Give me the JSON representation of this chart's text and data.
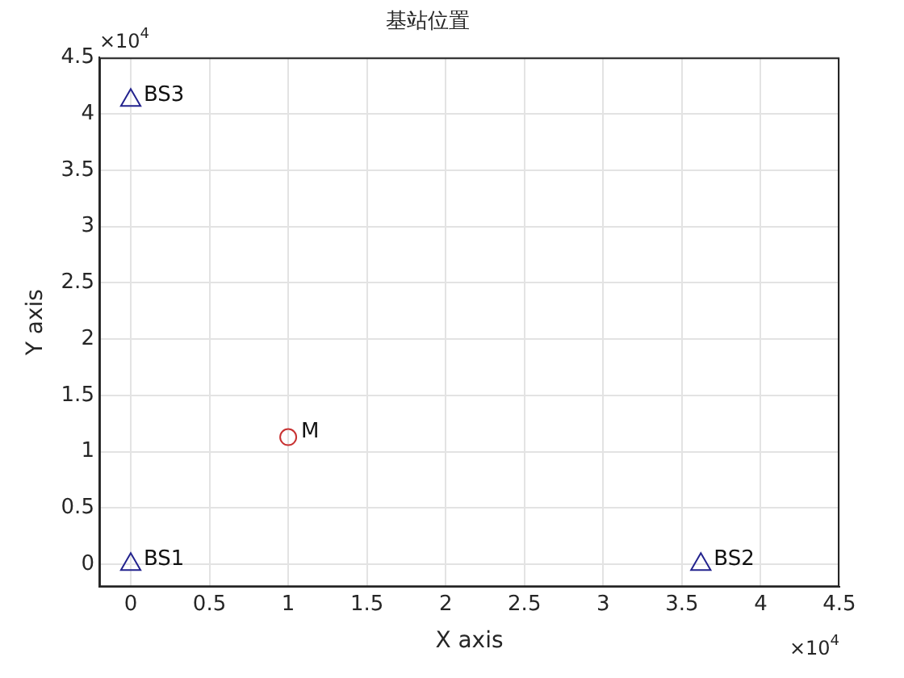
{
  "chart_data": {
    "type": "scatter",
    "title": "基站位置",
    "xlabel": "X axis",
    "ylabel": "Y axis",
    "series": [
      {
        "name": "BS1",
        "color": "#23238e",
        "marker": "triangle",
        "x": [
          0
        ],
        "values": [
          0
        ]
      },
      {
        "name": "BS2",
        "color": "#23238e",
        "marker": "triangle",
        "x": [
          3.62
        ],
        "values": [
          0
        ]
      },
      {
        "name": "BS3",
        "color": "#23238e",
        "marker": "triangle",
        "x": [
          0
        ],
        "values": [
          4.12
        ]
      },
      {
        "name": "M",
        "color": "#c83232",
        "marker": "circle",
        "x": [
          1
        ],
        "values": [
          1.13
        ]
      }
    ],
    "xlim": [
      -0.2,
      4.5
    ],
    "xticks": [
      0,
      0.5,
      1,
      1.5,
      2,
      2.5,
      3,
      3.5,
      4,
      4.5
    ],
    "ylim": [
      -0.2,
      4.5
    ],
    "yticks": [
      0,
      0.5,
      1,
      1.5,
      2,
      2.5,
      3,
      3.5,
      4,
      4.5
    ],
    "grid": true,
    "legend": false,
    "annotations": [
      "×10$^{4}$",
      "×10$^{4}$"
    ]
  }
}
